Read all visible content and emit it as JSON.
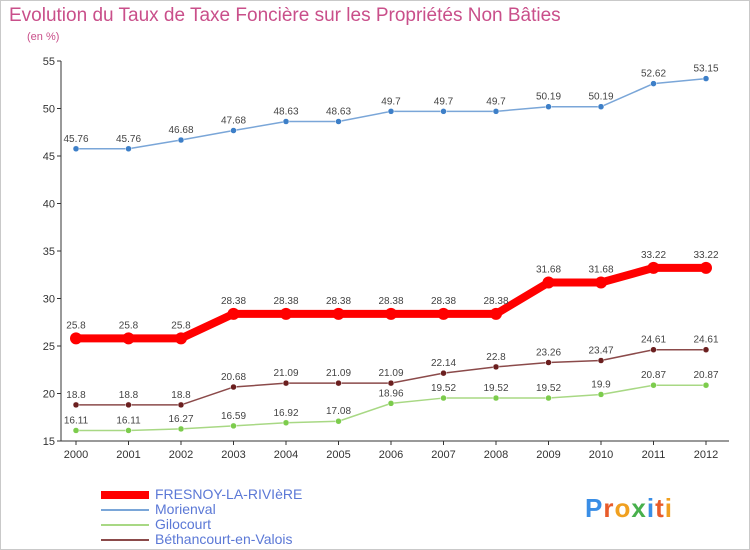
{
  "title": "Evolution du Taux de Taxe Foncière sur les Propriétés Non Bâties",
  "subtitle": "(en %)",
  "logo": {
    "letters": [
      "P",
      "r",
      "o",
      "x",
      "i",
      "t",
      "i"
    ],
    "colors": [
      "#3a8ee6",
      "#e85b2a",
      "#f0a020",
      "#48b04c",
      "#3a8ee6",
      "#e85b2a",
      "#f0a020"
    ]
  },
  "chart_data": {
    "type": "line",
    "x": [
      "2000",
      "2001",
      "2002",
      "2003",
      "2004",
      "2005",
      "2006",
      "2007",
      "2008",
      "2009",
      "2010",
      "2011",
      "2012"
    ],
    "ylim": [
      15,
      55
    ],
    "yticks": [
      15,
      20,
      25,
      30,
      35,
      40,
      45,
      50,
      55
    ],
    "grid": false,
    "legend_position": "bottom-left",
    "series": [
      {
        "name": "FRESNOY-LA-RIVIèRE",
        "color": "#ff0000",
        "width": 8,
        "values": [
          25.8,
          25.8,
          25.8,
          28.38,
          28.38,
          28.38,
          28.38,
          28.38,
          28.38,
          31.68,
          31.68,
          33.22,
          33.22
        ],
        "labels": [
          "25.8",
          "25.8",
          "25.8",
          "28.38",
          "28.38",
          "28.38",
          "28.38",
          "28.38",
          "28.38",
          "31.68",
          "31.68",
          "33.22",
          "33.22"
        ]
      },
      {
        "name": "Morienval",
        "color": "#7aa6d8",
        "marker": "#3d7fc8",
        "width": 1.5,
        "values": [
          45.76,
          45.76,
          46.68,
          47.68,
          48.63,
          48.63,
          49.7,
          49.7,
          49.7,
          50.19,
          50.19,
          52.62,
          53.15
        ],
        "labels": [
          "45.76",
          "45.76",
          "46.68",
          "47.68",
          "48.63",
          "48.63",
          "49.7",
          "49.7",
          "49.7",
          "50.19",
          "50.19",
          "52.62",
          "53.15"
        ]
      },
      {
        "name": "Gilocourt",
        "color": "#a8d884",
        "marker": "#7ccc4c",
        "width": 1.5,
        "values": [
          16.11,
          16.11,
          16.27,
          16.59,
          16.92,
          17.08,
          18.96,
          19.52,
          19.52,
          19.52,
          19.9,
          20.87,
          20.87
        ],
        "labels": [
          "16.11",
          "16.11",
          "16.27",
          "16.59",
          "16.92",
          "17.08",
          "18.96",
          "19.52",
          "19.52",
          "19.52",
          "19.9",
          "20.87",
          "20.87"
        ]
      },
      {
        "name": "Béthancourt-en-Valois",
        "color": "#8b4a4a",
        "marker": "#6b1f1f",
        "width": 1.5,
        "values": [
          18.8,
          18.8,
          18.8,
          20.68,
          21.09,
          21.09,
          21.09,
          22.14,
          22.8,
          23.26,
          23.47,
          24.61,
          24.61
        ],
        "labels": [
          "18.8",
          "18.8",
          "18.8",
          "20.68",
          "21.09",
          "21.09",
          "21.09",
          "22.14",
          "22.8",
          "23.26",
          "23.47",
          "24.61",
          "24.61"
        ]
      }
    ]
  }
}
